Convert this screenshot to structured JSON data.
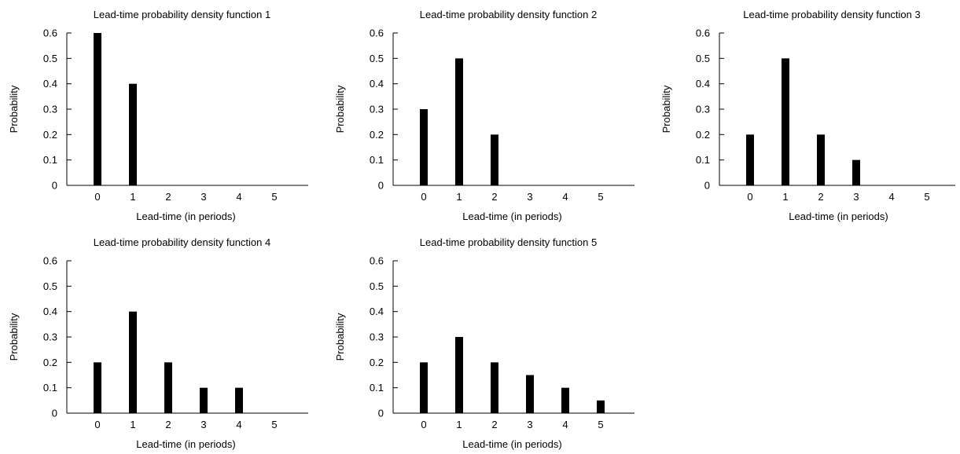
{
  "chart_data": [
    {
      "type": "bar",
      "title": "Lead-time probability density function 1",
      "xlabel": "Lead-time (in periods)",
      "ylabel": "Probability",
      "categories": [
        "0",
        "1",
        "2",
        "3",
        "4",
        "5"
      ],
      "values": [
        0.6,
        0.4,
        0,
        0,
        0,
        0
      ],
      "ylim": [
        0,
        0.6
      ],
      "yticks": [
        "0",
        "0.1",
        "0.2",
        "0.3",
        "0.4",
        "0.5",
        "0.6"
      ],
      "bar_color": "#000000",
      "grid": false
    },
    {
      "type": "bar",
      "title": "Lead-time probability density function 2",
      "xlabel": "Lead-time (in periods)",
      "ylabel": "Probability",
      "categories": [
        "0",
        "1",
        "2",
        "3",
        "4",
        "5"
      ],
      "values": [
        0.3,
        0.5,
        0.2,
        0,
        0,
        0
      ],
      "ylim": [
        0,
        0.6
      ],
      "yticks": [
        "0",
        "0.1",
        "0.2",
        "0.3",
        "0.4",
        "0.5",
        "0.6"
      ],
      "bar_color": "#000000",
      "grid": false
    },
    {
      "type": "bar",
      "title": "Lead-time probability density function 3",
      "xlabel": "Lead-time (in periods)",
      "ylabel": "Probability",
      "categories": [
        "0",
        "1",
        "2",
        "3",
        "4",
        "5"
      ],
      "values": [
        0.2,
        0.5,
        0.2,
        0.1,
        0,
        0
      ],
      "ylim": [
        0,
        0.6
      ],
      "yticks": [
        "0",
        "0.1",
        "0.2",
        "0.3",
        "0.4",
        "0.5",
        "0.6"
      ],
      "bar_color": "#000000",
      "grid": false
    },
    {
      "type": "bar",
      "title": "Lead-time probability density function 4",
      "xlabel": "Lead-time (in periods)",
      "ylabel": "Probability",
      "categories": [
        "0",
        "1",
        "2",
        "3",
        "4",
        "5"
      ],
      "values": [
        0.2,
        0.4,
        0.2,
        0.1,
        0.1,
        0
      ],
      "ylim": [
        0,
        0.6
      ],
      "yticks": [
        "0",
        "0.1",
        "0.2",
        "0.3",
        "0.4",
        "0.5",
        "0.6"
      ],
      "bar_color": "#000000",
      "grid": false
    },
    {
      "type": "bar",
      "title": "Lead-time probability density function 5",
      "xlabel": "Lead-time (in periods)",
      "ylabel": "Probability",
      "categories": [
        "0",
        "1",
        "2",
        "3",
        "4",
        "5"
      ],
      "values": [
        0.2,
        0.3,
        0.2,
        0.15,
        0.1,
        0.05
      ],
      "ylim": [
        0,
        0.6
      ],
      "yticks": [
        "0",
        "0.1",
        "0.2",
        "0.3",
        "0.4",
        "0.5",
        "0.6"
      ],
      "bar_color": "#000000",
      "grid": false
    }
  ]
}
